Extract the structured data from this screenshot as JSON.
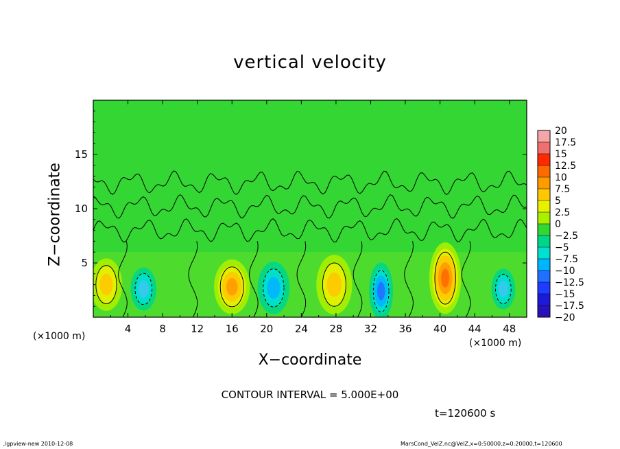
{
  "chart_data": {
    "type": "heatmap",
    "title": "vertical velocity",
    "xlabel": "X−coordinate",
    "ylabel": "Z−coordinate",
    "x_unit_label": "(×1000 m)",
    "xlim": [
      0,
      50
    ],
    "ylim": [
      0,
      20
    ],
    "xticks": [
      "4",
      "8",
      "12",
      "16",
      "20",
      "24",
      "28",
      "32",
      "36",
      "40",
      "44",
      "48"
    ],
    "xtick_values": [
      4,
      8,
      12,
      16,
      20,
      24,
      28,
      32,
      36,
      40,
      44,
      48
    ],
    "yticks": [
      "5",
      "10",
      "15"
    ],
    "ytick_values": [
      5,
      10,
      15
    ],
    "colorbar": {
      "labels": [
        "20",
        "17.5",
        "15",
        "12.5",
        "10",
        "7.5",
        "5",
        "2.5",
        "0",
        "−2.5",
        "−5",
        "−7.5",
        "−10",
        "−12.5",
        "−15",
        "−17.5",
        "−20"
      ],
      "colors": [
        "#f4a6a6",
        "#f07070",
        "#ff2a00",
        "#ff6a00",
        "#ff9a00",
        "#ffc800",
        "#e8f000",
        "#a8f000",
        "#33d633",
        "#00d68a",
        "#00e0d0",
        "#00b4ff",
        "#2070ff",
        "#1e3cff",
        "#1a1ad8",
        "#2a10b8",
        "#6a10c0"
      ]
    },
    "cells": [
      {
        "x": 1.5,
        "z": 3.0,
        "rx": 1.6,
        "rz": 2.2,
        "value": 7.5
      },
      {
        "x": 5.8,
        "z": 2.6,
        "rx": 1.3,
        "rz": 1.8,
        "value": -6
      },
      {
        "x": 16.0,
        "z": 2.8,
        "rx": 1.8,
        "rz": 2.3,
        "value": 9
      },
      {
        "x": 20.8,
        "z": 2.7,
        "rx": 1.6,
        "rz": 2.2,
        "value": -7.5
      },
      {
        "x": 27.8,
        "z": 3.0,
        "rx": 1.8,
        "rz": 2.5,
        "value": 7.5
      },
      {
        "x": 33.2,
        "z": 2.4,
        "rx": 1.2,
        "rz": 2.4,
        "value": -10
      },
      {
        "x": 40.6,
        "z": 3.6,
        "rx": 1.6,
        "rz": 3.0,
        "value": 12
      },
      {
        "x": 47.3,
        "z": 2.6,
        "rx": 1.2,
        "rz": 1.7,
        "value": -6
      }
    ],
    "contour_interval": "CONTOUR INTERVAL = 5.000E+00",
    "time": "t=120600 s"
  },
  "footer": {
    "left": "./gpview-new   2010-12-08",
    "right": "MarsCond_VelZ.nc@VelZ,x=0:50000,z=0:20000,t=120600"
  }
}
